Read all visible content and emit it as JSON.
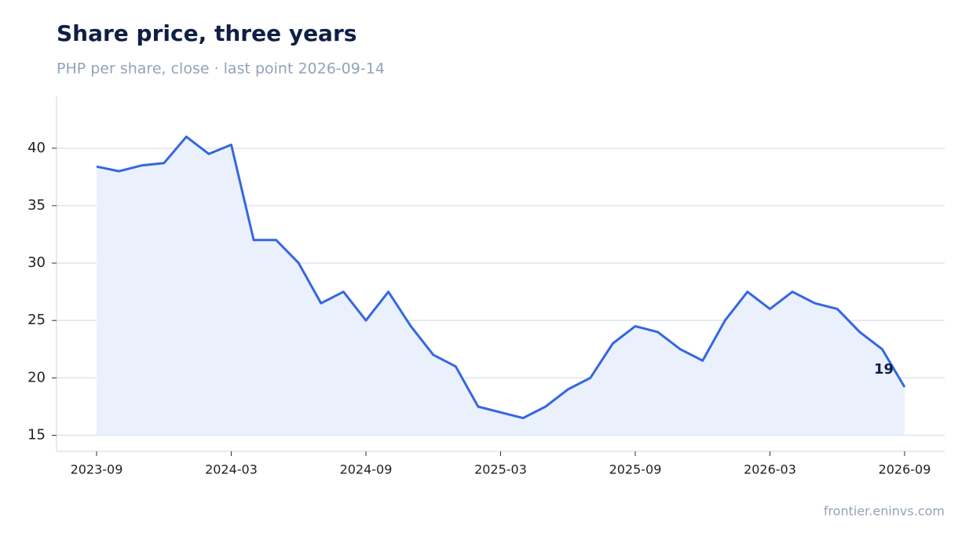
{
  "chart_data": {
    "type": "line",
    "title": "Share price, three years",
    "subtitle": "PHP per share, close · last point 2026-09-14",
    "source": "frontier.eninvs.com",
    "x": [
      "2023-09",
      "2023-10",
      "2023-11",
      "2023-12",
      "2024-01",
      "2024-02",
      "2024-03",
      "2024-04",
      "2024-05",
      "2024-06",
      "2024-07",
      "2024-08",
      "2024-09",
      "2024-10",
      "2024-11",
      "2024-12",
      "2025-01",
      "2025-02",
      "2025-03",
      "2025-04",
      "2025-05",
      "2025-06",
      "2025-07",
      "2025-08",
      "2025-09",
      "2025-10",
      "2025-11",
      "2025-12",
      "2026-01",
      "2026-02",
      "2026-03",
      "2026-04",
      "2026-05",
      "2026-06",
      "2026-07",
      "2026-08",
      "2026-09"
    ],
    "series": [
      {
        "color": "#3567e0",
        "values": [
          38.4,
          38,
          38.5,
          38.7,
          41,
          39.5,
          40.3,
          32,
          32,
          30,
          26.5,
          27.5,
          25,
          27.5,
          24.5,
          22,
          21,
          17.5,
          17,
          16.5,
          17.5,
          19,
          20,
          23,
          24.5,
          24,
          22.5,
          21.5,
          25,
          27.5,
          26,
          27.5,
          26.5,
          26,
          24,
          22.5,
          19.2
        ]
      }
    ],
    "end_label": "19",
    "area_color": "#eaf0fc",
    "xticks": [
      "2023-09",
      "2024-03",
      "2024-09",
      "2025-03",
      "2025-09",
      "2026-03",
      "2026-09"
    ],
    "ylim": [
      13.6,
      44.5
    ],
    "yticks": [
      15,
      20,
      25,
      30,
      35,
      40
    ],
    "grid": true
  }
}
